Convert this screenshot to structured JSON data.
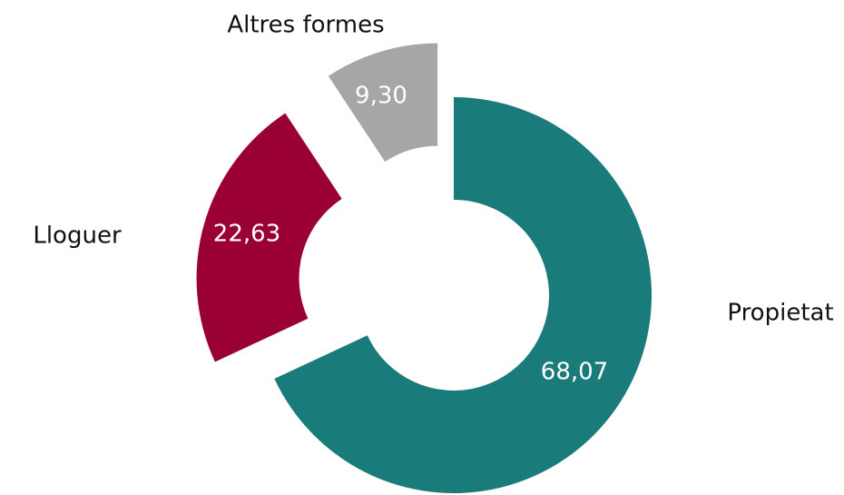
{
  "chart_data": {
    "type": "donut",
    "categories": [
      "Propietat",
      "Lloguer",
      "Altres formes"
    ],
    "values": [
      68.07,
      22.63,
      9.3
    ],
    "value_labels": [
      "68,07",
      "22,63",
      "9,30"
    ],
    "colors": [
      "#1a7b7b",
      "#9a0033",
      "#a6a6a6"
    ]
  }
}
